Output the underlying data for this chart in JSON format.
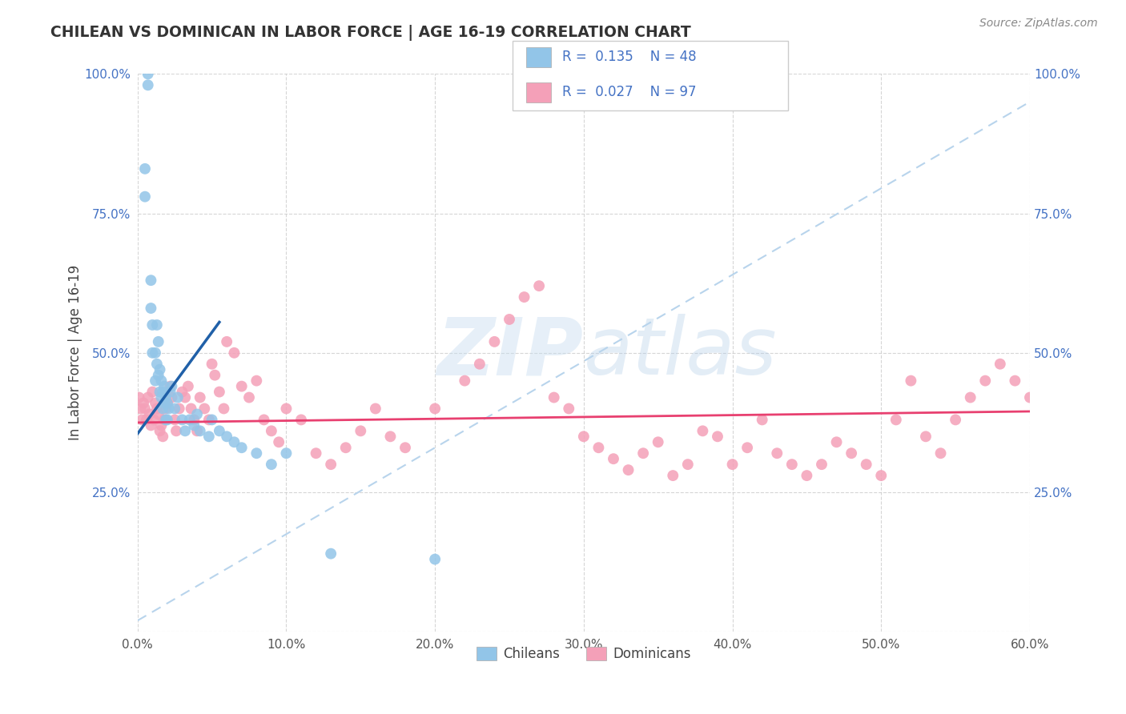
{
  "title": "CHILEAN VS DOMINICAN IN LABOR FORCE | AGE 16-19 CORRELATION CHART",
  "source": "Source: ZipAtlas.com",
  "ylabel": "In Labor Force | Age 16-19",
  "xlim": [
    0.0,
    0.6
  ],
  "ylim": [
    0.0,
    1.0
  ],
  "xticks": [
    0.0,
    0.1,
    0.2,
    0.3,
    0.4,
    0.5,
    0.6
  ],
  "yticks": [
    0.0,
    0.25,
    0.5,
    0.75,
    1.0
  ],
  "chilean_color": "#92c5e8",
  "dominican_color": "#f4a0b8",
  "chilean_line_color": "#2060a8",
  "dominican_line_color": "#e84070",
  "dashed_line_color": "#b8d4ec",
  "watermark_color": "#c8ddf0",
  "legend_R_chilean": "0.135",
  "legend_N_chilean": "48",
  "legend_R_dominican": "0.027",
  "legend_N_dominican": "97",
  "chilean_x": [
    0.007,
    0.007,
    0.005,
    0.005,
    0.009,
    0.009,
    0.01,
    0.01,
    0.012,
    0.012,
    0.013,
    0.013,
    0.014,
    0.014,
    0.015,
    0.015,
    0.016,
    0.016,
    0.017,
    0.017,
    0.018,
    0.018,
    0.019,
    0.019,
    0.02,
    0.02,
    0.021,
    0.022,
    0.023,
    0.025,
    0.027,
    0.03,
    0.032,
    0.035,
    0.038,
    0.04,
    0.042,
    0.048,
    0.05,
    0.055,
    0.06,
    0.065,
    0.07,
    0.08,
    0.09,
    0.1,
    0.13,
    0.2
  ],
  "chilean_y": [
    1.0,
    0.98,
    0.83,
    0.78,
    0.63,
    0.58,
    0.55,
    0.5,
    0.5,
    0.45,
    0.55,
    0.48,
    0.52,
    0.46,
    0.47,
    0.43,
    0.45,
    0.42,
    0.43,
    0.4,
    0.44,
    0.41,
    0.42,
    0.38,
    0.41,
    0.38,
    0.4,
    0.43,
    0.44,
    0.4,
    0.42,
    0.38,
    0.36,
    0.38,
    0.37,
    0.39,
    0.36,
    0.35,
    0.38,
    0.36,
    0.35,
    0.34,
    0.33,
    0.32,
    0.3,
    0.32,
    0.14,
    0.13
  ],
  "dominican_x": [
    0.001,
    0.002,
    0.003,
    0.004,
    0.005,
    0.006,
    0.007,
    0.008,
    0.009,
    0.01,
    0.011,
    0.012,
    0.013,
    0.014,
    0.015,
    0.016,
    0.017,
    0.018,
    0.019,
    0.02,
    0.022,
    0.023,
    0.025,
    0.026,
    0.028,
    0.03,
    0.032,
    0.034,
    0.036,
    0.038,
    0.04,
    0.042,
    0.045,
    0.048,
    0.05,
    0.052,
    0.055,
    0.058,
    0.06,
    0.065,
    0.07,
    0.075,
    0.08,
    0.085,
    0.09,
    0.095,
    0.1,
    0.11,
    0.12,
    0.13,
    0.14,
    0.15,
    0.16,
    0.17,
    0.18,
    0.2,
    0.22,
    0.23,
    0.24,
    0.25,
    0.26,
    0.27,
    0.28,
    0.29,
    0.3,
    0.31,
    0.32,
    0.33,
    0.34,
    0.35,
    0.36,
    0.37,
    0.38,
    0.39,
    0.4,
    0.41,
    0.42,
    0.43,
    0.44,
    0.45,
    0.46,
    0.47,
    0.48,
    0.49,
    0.5,
    0.51,
    0.52,
    0.53,
    0.54,
    0.55,
    0.56,
    0.57,
    0.58,
    0.59,
    0.6,
    0.61,
    0.62
  ],
  "dominican_y": [
    0.42,
    0.4,
    0.38,
    0.41,
    0.4,
    0.38,
    0.42,
    0.39,
    0.37,
    0.43,
    0.38,
    0.41,
    0.4,
    0.39,
    0.36,
    0.37,
    0.35,
    0.38,
    0.4,
    0.41,
    0.44,
    0.42,
    0.38,
    0.36,
    0.4,
    0.43,
    0.42,
    0.44,
    0.4,
    0.38,
    0.36,
    0.42,
    0.4,
    0.38,
    0.48,
    0.46,
    0.43,
    0.4,
    0.52,
    0.5,
    0.44,
    0.42,
    0.45,
    0.38,
    0.36,
    0.34,
    0.4,
    0.38,
    0.32,
    0.3,
    0.33,
    0.36,
    0.4,
    0.35,
    0.33,
    0.4,
    0.45,
    0.48,
    0.52,
    0.56,
    0.6,
    0.62,
    0.42,
    0.4,
    0.35,
    0.33,
    0.31,
    0.29,
    0.32,
    0.34,
    0.28,
    0.3,
    0.36,
    0.35,
    0.3,
    0.33,
    0.38,
    0.32,
    0.3,
    0.28,
    0.3,
    0.34,
    0.32,
    0.3,
    0.28,
    0.38,
    0.45,
    0.35,
    0.32,
    0.38,
    0.42,
    0.45,
    0.48,
    0.45,
    0.42,
    0.35,
    0.4
  ]
}
